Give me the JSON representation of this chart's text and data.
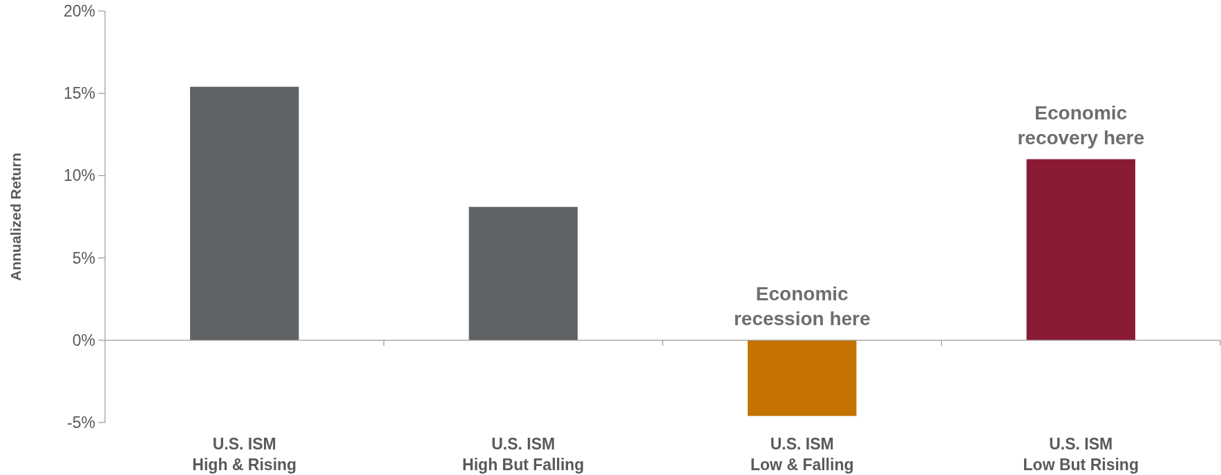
{
  "chart_data": {
    "type": "bar",
    "ylabel": "Annualized Return",
    "categories": [
      "U.S. ISM\nHigh & Rising",
      "U.S. ISM\nHigh But Falling",
      "U.S. ISM\nLow & Falling",
      "U.S. ISM\nLow But Rising"
    ],
    "values": [
      15.4,
      8.1,
      -4.6,
      11.0
    ],
    "colors": [
      "#5f6366",
      "#5f6366",
      "#c47200",
      "#8b1a35"
    ],
    "ylim": [
      -5,
      20
    ],
    "yticks": [
      {
        "value": -5,
        "label": "-5%"
      },
      {
        "value": 0,
        "label": "0%"
      },
      {
        "value": 5,
        "label": "5%"
      },
      {
        "value": 10,
        "label": "10%"
      },
      {
        "value": 15,
        "label": "15%"
      },
      {
        "value": 20,
        "label": "20%"
      }
    ],
    "annotations": [
      {
        "text": "Economic\nrecession here",
        "x": "U.S. ISM\nLow & Falling",
        "y": 0
      },
      {
        "text": "Economic\nrecovery here",
        "x": "U.S. ISM\nLow But Rising",
        "y": 11.0
      }
    ]
  }
}
